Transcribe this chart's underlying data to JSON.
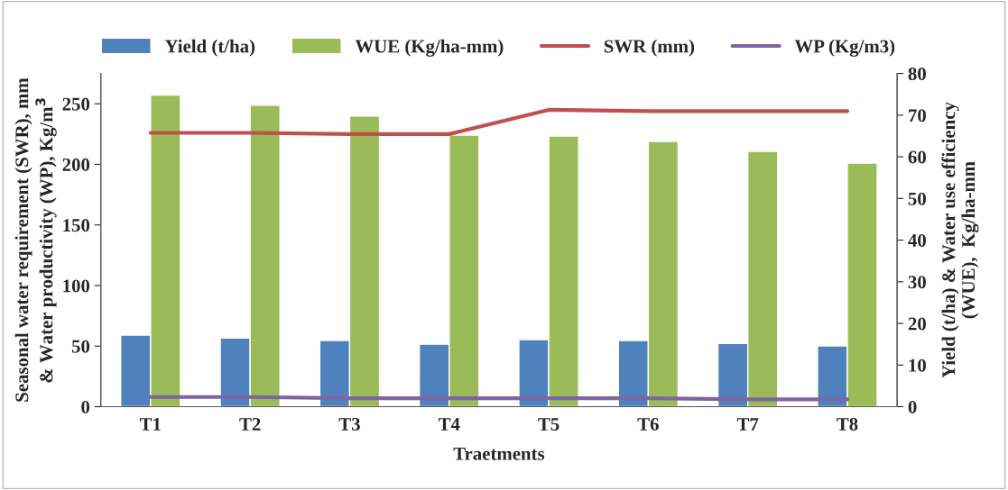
{
  "chart_data": {
    "type": "bar",
    "xlabel": "Traetments",
    "ylabel": "Seasonal water requirement (SWR), mm\n& Water productivity (WP), Kg/m$^{3}$",
    "y2label": "Yield (t/ha) & Water use efficiency\n(WUE),  Kg/ha-mm",
    "categories": [
      "T1",
      "T2",
      "T3",
      "T4",
      "T5",
      "T6",
      "T7",
      "T8"
    ],
    "series": [
      {
        "name": "Yield (t/ha)",
        "axis": "y2",
        "color": "#4f81bd",
        "values": [
          17.2,
          16.5,
          15.9,
          15.0,
          16.1,
          15.9,
          15.2,
          14.6
        ]
      },
      {
        "name": "WUE (Kg/ha-mm)",
        "axis": "y2",
        "color": "#9bbb59",
        "values": [
          74.8,
          72.4,
          69.8,
          65.2,
          65.0,
          63.7,
          61.3,
          58.5
        ]
      },
      {
        "name": "SWR (mm)",
        "type": "line",
        "color": "#c0504d",
        "values": [
          226,
          226,
          225,
          225,
          245,
          244,
          244,
          244
        ]
      },
      {
        "name": "WP (Kg/m3)",
        "type": "line",
        "color": "#8064a2",
        "values": [
          8,
          8,
          7,
          7,
          7,
          7,
          6,
          6
        ]
      }
    ],
    "ylim": [
      0,
      275
    ],
    "yticks": [
      0,
      50,
      100,
      150,
      200,
      250
    ],
    "y2lim": [
      0,
      80
    ],
    "y2ticks": [
      0,
      10,
      20,
      30,
      40,
      50,
      60,
      70,
      80
    ],
    "legend": "top",
    "grid": false,
    "marker": "none",
    "line_style": "solid"
  }
}
